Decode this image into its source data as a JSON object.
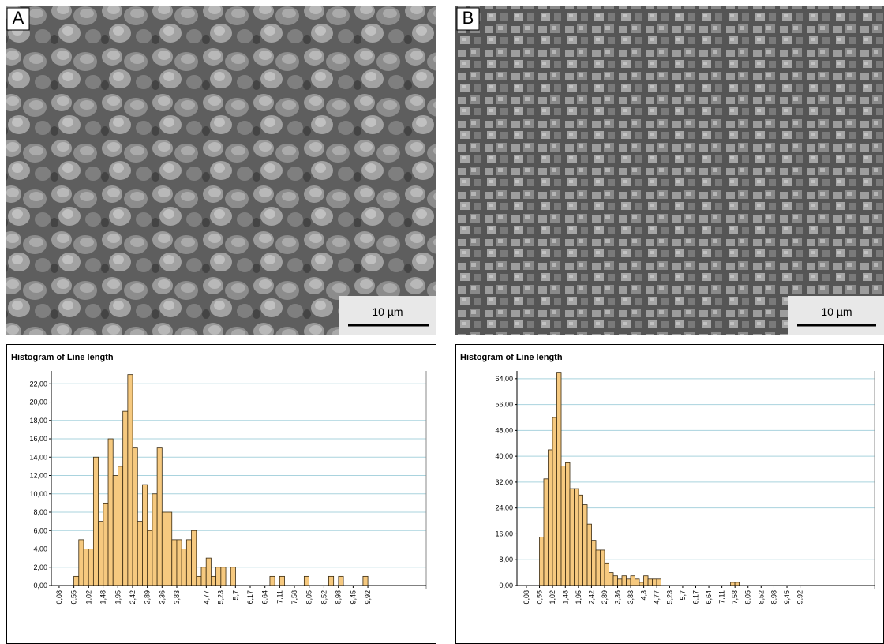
{
  "images": [
    {
      "label": "A",
      "scale_bar": "10 µm"
    },
    {
      "label": "B",
      "scale_bar": "10 µm"
    }
  ],
  "chart_data": [
    {
      "type": "histogram",
      "title": "Histogram of Line length",
      "color": "#f6c97f",
      "grid": true,
      "bins": [
        0.08,
        0.236,
        0.392,
        0.549,
        0.705,
        0.861,
        1.017,
        1.173,
        1.33,
        1.486,
        1.642,
        1.798,
        1.954,
        2.111,
        2.267,
        2.423,
        2.579,
        2.735,
        2.892,
        3.048,
        3.204,
        3.36,
        3.516,
        3.673,
        3.829,
        3.985,
        4.141,
        4.297,
        4.454,
        4.61,
        4.766,
        4.922,
        5.078,
        5.235,
        5.391,
        5.547,
        5.703,
        5.859,
        6.016,
        6.172,
        6.328,
        6.484,
        6.64,
        6.797,
        6.953,
        7.109,
        7.265,
        7.422,
        7.578,
        7.734,
        7.89,
        8.046,
        8.203,
        8.359,
        8.515,
        8.671,
        8.828,
        8.984,
        9.14,
        9.296,
        9.452,
        9.609,
        9.765,
        9.921,
        10.077
      ],
      "values": [
        0,
        0,
        0,
        1,
        5,
        4,
        4,
        14,
        7,
        9,
        16,
        12,
        13,
        19,
        23,
        15,
        7,
        11,
        6,
        10,
        15,
        8,
        8,
        5,
        5,
        4,
        5,
        6,
        1,
        2,
        3,
        1,
        2,
        2,
        0,
        2,
        0,
        0,
        0,
        0,
        0,
        0,
        0,
        1,
        0,
        1,
        0,
        0,
        0,
        0,
        1,
        0,
        0,
        0,
        0,
        1,
        0,
        1,
        0,
        0,
        0,
        0,
        1,
        0
      ],
      "xlim": [
        -0.17,
        11.78
      ],
      "ylim": [
        0,
        23.4
      ],
      "xticks": [
        {
          "value": 0.08,
          "label": "0,08"
        },
        {
          "value": 0.55,
          "label": "0,55"
        },
        {
          "value": 1.02,
          "label": "1,02"
        },
        {
          "value": 1.48,
          "label": "1,48"
        },
        {
          "value": 1.95,
          "label": "1,95"
        },
        {
          "value": 2.42,
          "label": "2,42"
        },
        {
          "value": 2.89,
          "label": "2,89"
        },
        {
          "value": 3.36,
          "label": "3,36"
        },
        {
          "value": 3.83,
          "label": "3,83"
        },
        {
          "value": 4.77,
          "label": "4,77"
        },
        {
          "value": 5.23,
          "label": "5,23"
        },
        {
          "value": 5.7,
          "label": "5,7"
        },
        {
          "value": 6.17,
          "label": "6,17"
        },
        {
          "value": 6.64,
          "label": "6,64"
        },
        {
          "value": 7.11,
          "label": "7,11"
        },
        {
          "value": 7.58,
          "label": "7,58"
        },
        {
          "value": 8.05,
          "label": "8,05"
        },
        {
          "value": 8.52,
          "label": "8,52"
        },
        {
          "value": 8.98,
          "label": "8,98"
        },
        {
          "value": 9.45,
          "label": "9,45"
        },
        {
          "value": 9.92,
          "label": "9,92"
        }
      ],
      "yticks": [
        {
          "value": 0,
          "label": "0,00"
        },
        {
          "value": 2,
          "label": "2,00"
        },
        {
          "value": 4,
          "label": "4,00"
        },
        {
          "value": 6,
          "label": "6,00"
        },
        {
          "value": 8,
          "label": "8,00"
        },
        {
          "value": 10,
          "label": "10,00"
        },
        {
          "value": 12,
          "label": "12,00"
        },
        {
          "value": 14,
          "label": "14,00"
        },
        {
          "value": 16,
          "label": "16,00"
        },
        {
          "value": 18,
          "label": "18,00"
        },
        {
          "value": 20,
          "label": "20,00"
        },
        {
          "value": 22,
          "label": "22,00"
        }
      ]
    },
    {
      "type": "histogram",
      "title": "Histogram of Line length",
      "color": "#f6c97f",
      "grid": true,
      "bins": [
        0.08,
        0.236,
        0.392,
        0.549,
        0.705,
        0.861,
        1.017,
        1.173,
        1.33,
        1.486,
        1.642,
        1.798,
        1.954,
        2.111,
        2.267,
        2.423,
        2.579,
        2.735,
        2.892,
        3.048,
        3.204,
        3.36,
        3.516,
        3.673,
        3.829,
        3.985,
        4.141,
        4.297,
        4.454,
        4.61,
        4.766,
        4.922,
        5.078,
        5.235,
        5.391,
        5.547,
        5.703,
        5.859,
        6.016,
        6.172,
        6.328,
        6.484,
        6.64,
        6.797,
        6.953,
        7.109,
        7.265,
        7.422,
        7.578,
        7.734,
        7.89,
        8.046,
        8.203,
        8.359,
        8.515,
        8.671,
        8.828,
        8.984,
        9.14,
        9.296,
        9.452,
        9.609,
        9.765,
        9.921,
        10.077
      ],
      "values": [
        0,
        0,
        0,
        15,
        33,
        42,
        52,
        66,
        37,
        38,
        30,
        30,
        28,
        25,
        19,
        14,
        11,
        11,
        7,
        4,
        3,
        2,
        3,
        2,
        3,
        2,
        1,
        3,
        2,
        2,
        2,
        0,
        0,
        0,
        0,
        0,
        0,
        0,
        0,
        0,
        0,
        0,
        0,
        0,
        0,
        0,
        0,
        1,
        1,
        0,
        0,
        0,
        0,
        0,
        0,
        0,
        0,
        0,
        0,
        0,
        0,
        0,
        0,
        0
      ],
      "xlim": [
        -0.26,
        12.6
      ],
      "ylim": [
        0,
        66.4
      ],
      "xticks": [
        {
          "value": 0.08,
          "label": "0,08"
        },
        {
          "value": 0.55,
          "label": "0,55"
        },
        {
          "value": 1.02,
          "label": "1,02"
        },
        {
          "value": 1.48,
          "label": "1,48"
        },
        {
          "value": 1.95,
          "label": "1,95"
        },
        {
          "value": 2.42,
          "label": "2,42"
        },
        {
          "value": 2.89,
          "label": "2,89"
        },
        {
          "value": 3.36,
          "label": "3,36"
        },
        {
          "value": 3.83,
          "label": "3,83"
        },
        {
          "value": 4.3,
          "label": "4,3"
        },
        {
          "value": 4.77,
          "label": "4,77"
        },
        {
          "value": 5.23,
          "label": "5,23"
        },
        {
          "value": 5.7,
          "label": "5,7"
        },
        {
          "value": 6.17,
          "label": "6,17"
        },
        {
          "value": 6.64,
          "label": "6,64"
        },
        {
          "value": 7.11,
          "label": "7,11"
        },
        {
          "value": 7.58,
          "label": "7,58"
        },
        {
          "value": 8.05,
          "label": "8,05"
        },
        {
          "value": 8.52,
          "label": "8,52"
        },
        {
          "value": 8.98,
          "label": "8,98"
        },
        {
          "value": 9.45,
          "label": "9,45"
        },
        {
          "value": 9.92,
          "label": "9,92"
        }
      ],
      "yticks": [
        {
          "value": 0,
          "label": "0,00"
        },
        {
          "value": 8,
          "label": "8,00"
        },
        {
          "value": 16,
          "label": "16,00"
        },
        {
          "value": 24,
          "label": "24,00"
        },
        {
          "value": 32,
          "label": "32,00"
        },
        {
          "value": 40,
          "label": "40,00"
        },
        {
          "value": 48,
          "label": "48,00"
        },
        {
          "value": 56,
          "label": "56,00"
        },
        {
          "value": 64,
          "label": "64,00"
        }
      ]
    }
  ]
}
